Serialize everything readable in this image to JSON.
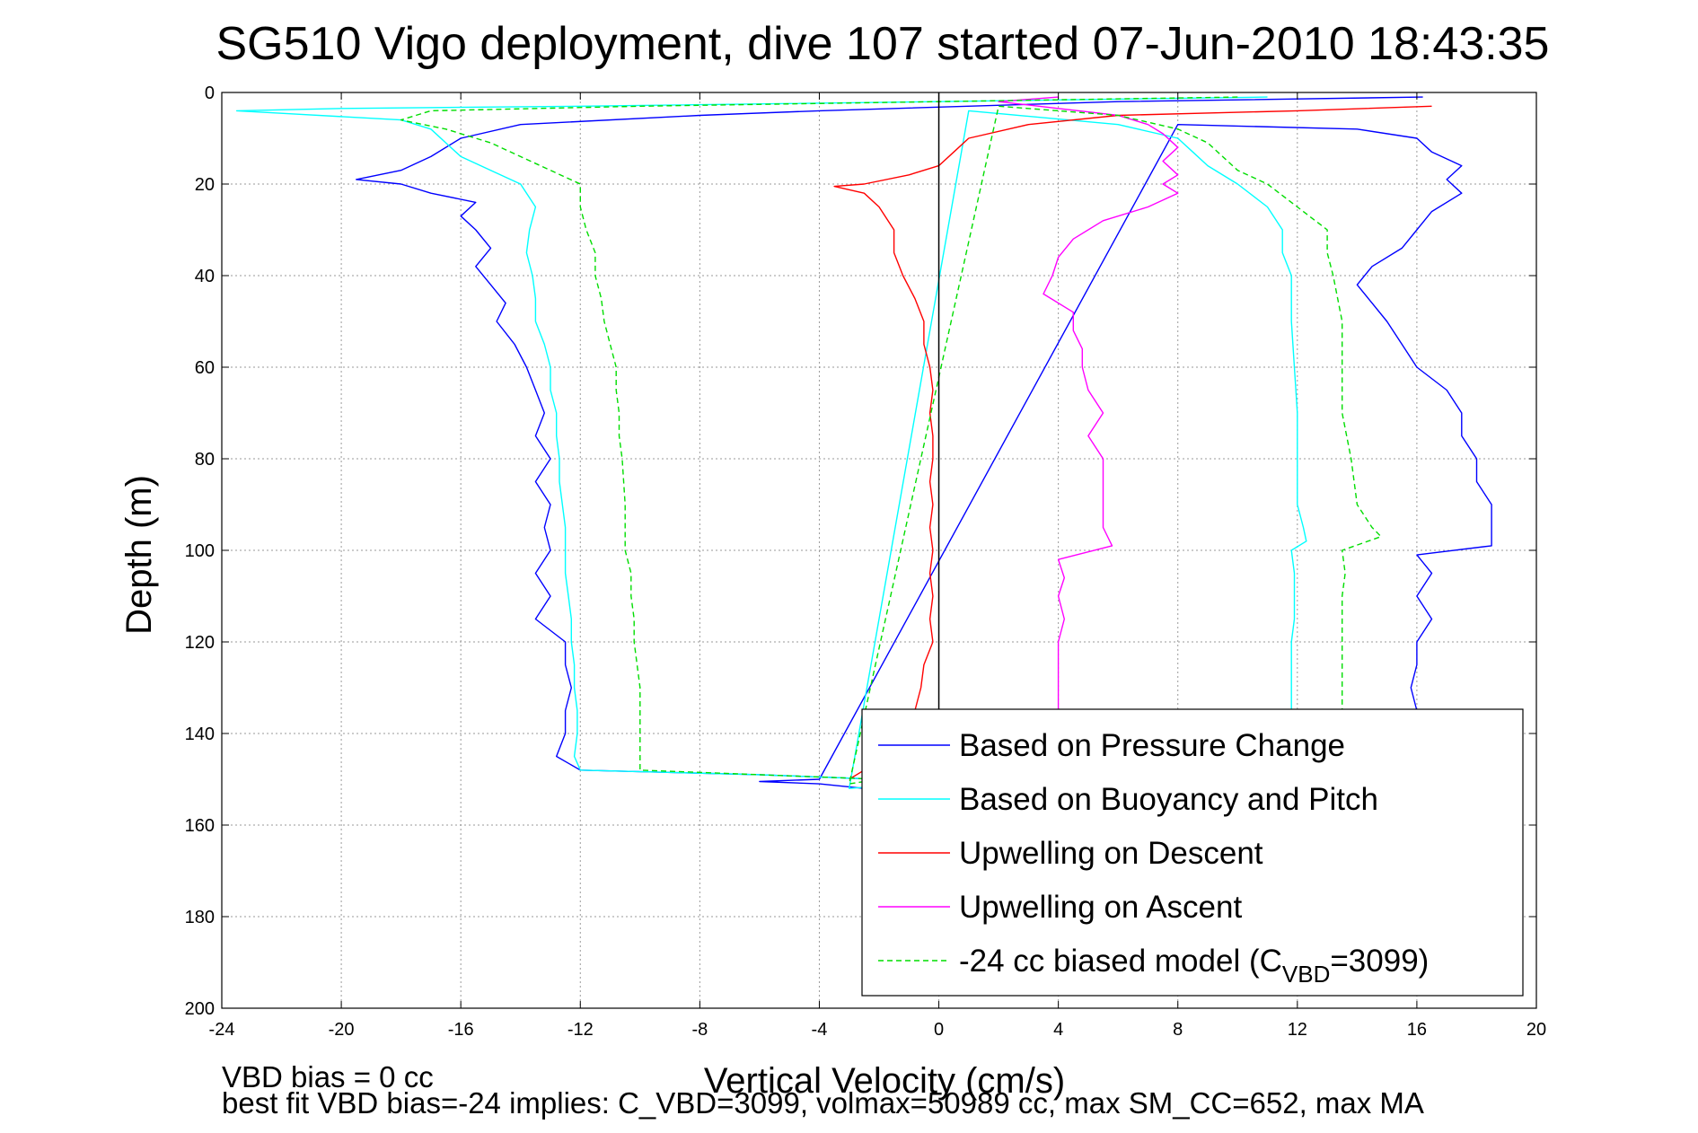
{
  "chart_data": {
    "type": "line",
    "title": "SG510 Vigo deployment, dive 107 started 07-Jun-2010 18:43:35",
    "xlabel": "Vertical Velocity (cm/s)",
    "ylabel": "Depth (m)",
    "xlim": [
      -24,
      20
    ],
    "ylim": [
      0,
      200
    ],
    "y_reversed": true,
    "grid": true,
    "x_ticks": [
      -24,
      -20,
      -16,
      -12,
      -8,
      -4,
      0,
      4,
      8,
      12,
      16,
      20
    ],
    "y_ticks": [
      0,
      20,
      40,
      60,
      80,
      100,
      120,
      140,
      160,
      180,
      200
    ],
    "legend_position": "bottom-right",
    "series": [
      {
        "name": "Based on Pressure Change",
        "color": "#0000ff",
        "style": "solid",
        "points": [
          [
            16.2,
            1
          ],
          [
            6,
            2
          ],
          [
            -4,
            4
          ],
          [
            -8,
            5
          ],
          [
            -14,
            7
          ],
          [
            -16,
            10
          ],
          [
            -17,
            14
          ],
          [
            -18,
            17
          ],
          [
            -19.5,
            19
          ],
          [
            -18,
            20
          ],
          [
            -17,
            22
          ],
          [
            -15.5,
            24
          ],
          [
            -16,
            27
          ],
          [
            -15.5,
            30
          ],
          [
            -15,
            34
          ],
          [
            -15.5,
            38
          ],
          [
            -15,
            42
          ],
          [
            -14.5,
            46
          ],
          [
            -14.8,
            50
          ],
          [
            -14.2,
            55
          ],
          [
            -13.8,
            60
          ],
          [
            -13.5,
            65
          ],
          [
            -13.2,
            70
          ],
          [
            -13.5,
            75
          ],
          [
            -13,
            80
          ],
          [
            -13.5,
            85
          ],
          [
            -13,
            90
          ],
          [
            -13.2,
            95
          ],
          [
            -13,
            100
          ],
          [
            -13.5,
            105
          ],
          [
            -13,
            110
          ],
          [
            -13.5,
            115
          ],
          [
            -12.5,
            120
          ],
          [
            -12.5,
            125
          ],
          [
            -12.3,
            130
          ],
          [
            -12.5,
            135
          ],
          [
            -12.5,
            140
          ],
          [
            -12.8,
            145
          ],
          [
            -12,
            148
          ],
          [
            -6,
            149
          ],
          [
            0,
            150.5
          ],
          [
            -2.5,
            152
          ],
          [
            -4,
            151
          ],
          [
            -6,
            150.5
          ],
          [
            -4,
            150
          ],
          [
            8,
            7
          ],
          [
            14,
            8
          ],
          [
            16,
            10
          ],
          [
            16.5,
            13
          ],
          [
            17.5,
            16
          ],
          [
            17,
            19
          ],
          [
            17.5,
            22
          ],
          [
            16.5,
            26
          ],
          [
            16,
            30
          ],
          [
            15.5,
            34
          ],
          [
            14.5,
            38
          ],
          [
            14,
            42
          ],
          [
            14.5,
            46
          ],
          [
            15,
            50
          ],
          [
            15.5,
            55
          ],
          [
            16,
            60
          ],
          [
            17,
            65
          ],
          [
            17.5,
            70
          ],
          [
            17.5,
            75
          ],
          [
            18,
            80
          ],
          [
            18,
            85
          ],
          [
            18.5,
            90
          ],
          [
            18.5,
            95
          ],
          [
            18.5,
            99
          ],
          [
            16,
            101
          ],
          [
            16.5,
            105
          ],
          [
            16,
            110
          ],
          [
            16.5,
            115
          ],
          [
            16,
            120
          ],
          [
            16,
            125
          ],
          [
            15.8,
            130
          ],
          [
            16,
            135
          ],
          [
            16,
            140
          ]
        ]
      },
      {
        "name": "Based on Buoyancy and Pitch",
        "color": "#00ffff",
        "style": "solid",
        "points": [
          [
            11,
            1
          ],
          [
            0,
            2
          ],
          [
            -12,
            3
          ],
          [
            -20,
            3.5
          ],
          [
            -23.5,
            4
          ],
          [
            -18,
            6
          ],
          [
            -17,
            8
          ],
          [
            -16.5,
            11
          ],
          [
            -16,
            14
          ],
          [
            -15,
            17
          ],
          [
            -14,
            20
          ],
          [
            -13.5,
            25
          ],
          [
            -13.7,
            30
          ],
          [
            -13.8,
            35
          ],
          [
            -13.6,
            40
          ],
          [
            -13.5,
            45
          ],
          [
            -13.5,
            50
          ],
          [
            -13.2,
            55
          ],
          [
            -13,
            60
          ],
          [
            -13,
            65
          ],
          [
            -12.8,
            70
          ],
          [
            -12.8,
            75
          ],
          [
            -12.7,
            80
          ],
          [
            -12.7,
            85
          ],
          [
            -12.6,
            90
          ],
          [
            -12.5,
            95
          ],
          [
            -12.5,
            100
          ],
          [
            -12.5,
            105
          ],
          [
            -12.4,
            110
          ],
          [
            -12.3,
            115
          ],
          [
            -12.3,
            120
          ],
          [
            -12.2,
            125
          ],
          [
            -12.2,
            130
          ],
          [
            -12.1,
            135
          ],
          [
            -12.1,
            140
          ],
          [
            -12.2,
            145
          ],
          [
            -12,
            148
          ],
          [
            -6,
            149
          ],
          [
            0,
            150.5
          ],
          [
            -3,
            152
          ],
          [
            1,
            4
          ],
          [
            6,
            7
          ],
          [
            8,
            10
          ],
          [
            8.5,
            13
          ],
          [
            9,
            16
          ],
          [
            10,
            20
          ],
          [
            11,
            25
          ],
          [
            11.5,
            30
          ],
          [
            11.5,
            35
          ],
          [
            11.8,
            40
          ],
          [
            11.8,
            50
          ],
          [
            11.9,
            60
          ],
          [
            12,
            70
          ],
          [
            12,
            80
          ],
          [
            12,
            90
          ],
          [
            12.2,
            95
          ],
          [
            12.3,
            98
          ],
          [
            11.8,
            100
          ],
          [
            11.9,
            105
          ],
          [
            11.9,
            110
          ],
          [
            11.9,
            115
          ],
          [
            11.8,
            120
          ],
          [
            11.8,
            125
          ],
          [
            11.8,
            130
          ],
          [
            11.8,
            135
          ],
          [
            11.8,
            140
          ]
        ]
      },
      {
        "name": "Upwelling on Descent",
        "color": "#ff0000",
        "style": "solid",
        "points": [
          [
            16.5,
            3
          ],
          [
            12,
            4
          ],
          [
            6,
            5
          ],
          [
            3,
            7
          ],
          [
            1,
            10
          ],
          [
            0.5,
            13
          ],
          [
            0,
            16
          ],
          [
            -1,
            18
          ],
          [
            -2.5,
            20
          ],
          [
            -3.5,
            20.5
          ],
          [
            -2.5,
            22
          ],
          [
            -2,
            25
          ],
          [
            -1.5,
            30
          ],
          [
            -1.5,
            35
          ],
          [
            -1.2,
            40
          ],
          [
            -0.8,
            45
          ],
          [
            -0.5,
            50
          ],
          [
            -0.5,
            55
          ],
          [
            -0.3,
            60
          ],
          [
            -0.2,
            65
          ],
          [
            -0.3,
            70
          ],
          [
            -0.2,
            75
          ],
          [
            -0.2,
            80
          ],
          [
            -0.3,
            85
          ],
          [
            -0.2,
            90
          ],
          [
            -0.3,
            95
          ],
          [
            -0.2,
            100
          ],
          [
            -0.3,
            105
          ],
          [
            -0.2,
            110
          ],
          [
            -0.3,
            115
          ],
          [
            -0.2,
            120
          ],
          [
            -0.5,
            125
          ],
          [
            -0.6,
            130
          ],
          [
            -0.8,
            135
          ],
          [
            -1.5,
            140
          ],
          [
            -2,
            145
          ],
          [
            -2.5,
            148
          ],
          [
            -3,
            150
          ]
        ]
      },
      {
        "name": "Upwelling on Ascent",
        "color": "#ff00ff",
        "style": "solid",
        "points": [
          [
            4,
            1
          ],
          [
            2,
            2
          ],
          [
            4,
            3.5
          ],
          [
            6,
            5
          ],
          [
            7,
            7
          ],
          [
            7.5,
            9
          ],
          [
            8,
            12
          ],
          [
            7.5,
            15
          ],
          [
            8,
            18
          ],
          [
            7.5,
            20
          ],
          [
            8,
            22
          ],
          [
            7,
            25
          ],
          [
            5.5,
            28
          ],
          [
            4.5,
            32
          ],
          [
            4,
            36
          ],
          [
            3.8,
            40
          ],
          [
            3.5,
            44
          ],
          [
            4.5,
            48
          ],
          [
            4.5,
            52
          ],
          [
            4.8,
            56
          ],
          [
            4.8,
            60
          ],
          [
            5,
            65
          ],
          [
            5.5,
            70
          ],
          [
            5,
            75
          ],
          [
            5.5,
            80
          ],
          [
            5.5,
            85
          ],
          [
            5.5,
            90
          ],
          [
            5.5,
            95
          ],
          [
            5.8,
            99
          ],
          [
            4,
            102
          ],
          [
            4.2,
            106
          ],
          [
            4,
            110
          ],
          [
            4.2,
            115
          ],
          [
            4,
            120
          ],
          [
            4,
            125
          ],
          [
            4,
            130
          ],
          [
            4,
            135
          ],
          [
            4,
            140
          ]
        ]
      },
      {
        "name": "-24 cc biased model (C_VBD=3099)",
        "color": "#00dd00",
        "style": "dashed",
        "points": [
          [
            10,
            1
          ],
          [
            0,
            2
          ],
          [
            -10,
            3
          ],
          [
            -17,
            4
          ],
          [
            -18,
            6
          ],
          [
            -16.5,
            8
          ],
          [
            -15,
            11
          ],
          [
            -14,
            14
          ],
          [
            -13,
            17
          ],
          [
            -12,
            20
          ],
          [
            -12,
            25
          ],
          [
            -11.8,
            30
          ],
          [
            -11.5,
            35
          ],
          [
            -11.5,
            40
          ],
          [
            -11.3,
            45
          ],
          [
            -11.2,
            50
          ],
          [
            -11,
            55
          ],
          [
            -10.8,
            60
          ],
          [
            -10.8,
            65
          ],
          [
            -10.7,
            70
          ],
          [
            -10.7,
            75
          ],
          [
            -10.6,
            80
          ],
          [
            -10.5,
            90
          ],
          [
            -10.5,
            100
          ],
          [
            -10.3,
            105
          ],
          [
            -10.3,
            110
          ],
          [
            -10.2,
            115
          ],
          [
            -10.2,
            120
          ],
          [
            -10.1,
            125
          ],
          [
            -10,
            130
          ],
          [
            -10,
            135
          ],
          [
            -10,
            140
          ],
          [
            -10,
            145
          ],
          [
            -10,
            148
          ],
          [
            -6,
            149
          ],
          [
            -2,
            150
          ],
          [
            -3,
            151
          ],
          [
            2,
            3
          ],
          [
            6,
            5
          ],
          [
            8,
            8
          ],
          [
            9,
            11
          ],
          [
            9.5,
            14
          ],
          [
            10,
            17
          ],
          [
            11,
            20
          ],
          [
            12,
            25
          ],
          [
            13,
            30
          ],
          [
            13,
            35
          ],
          [
            13.2,
            40
          ],
          [
            13.5,
            50
          ],
          [
            13.5,
            60
          ],
          [
            13.5,
            70
          ],
          [
            13.8,
            80
          ],
          [
            14,
            90
          ],
          [
            14.5,
            95
          ],
          [
            14.8,
            97
          ],
          [
            13.5,
            100
          ],
          [
            13.6,
            105
          ],
          [
            13.5,
            110
          ],
          [
            13.5,
            115
          ],
          [
            13.5,
            120
          ],
          [
            13.5,
            125
          ],
          [
            13.5,
            130
          ],
          [
            13.5,
            135
          ],
          [
            13.5,
            140
          ]
        ]
      }
    ],
    "legend": [
      {
        "label": "Based on Pressure Change",
        "color": "#0000ff",
        "style": "solid"
      },
      {
        "label": "Based on Buoyancy and Pitch",
        "color": "#00ffff",
        "style": "solid"
      },
      {
        "label": "Upwelling on Descent",
        "color": "#ff0000",
        "style": "solid"
      },
      {
        "label": "Upwelling on Ascent",
        "color": "#ff00ff",
        "style": "solid"
      },
      {
        "label": "-24 cc biased model (C",
        "sub": "VBD",
        "suffix": "=3099)",
        "color": "#00dd00",
        "style": "dashed"
      }
    ],
    "annotations": [
      "VBD bias = 0 cc",
      "best fit VBD bias=-24 implies: C_VBD=3099, volmax=50989 cc, max SM_CC=652, max MA"
    ]
  }
}
